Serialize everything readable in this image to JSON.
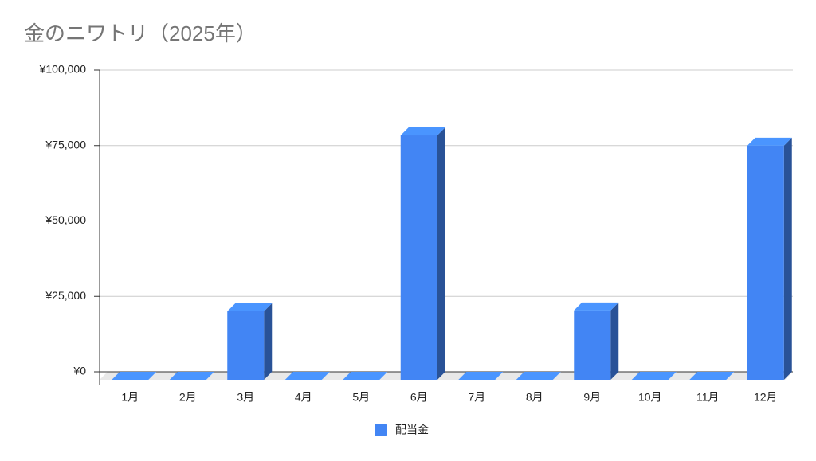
{
  "chart_data": {
    "type": "bar3d",
    "title": "金のニワトリ（2025年）",
    "categories": [
      "1月",
      "2月",
      "3月",
      "4月",
      "5月",
      "6月",
      "7月",
      "8月",
      "9月",
      "10月",
      "11月",
      "12月"
    ],
    "series": [
      {
        "name": "配当金",
        "color": "#4285f4",
        "values": [
          0,
          0,
          22700,
          0,
          0,
          81000,
          0,
          0,
          23000,
          0,
          0,
          77600
        ]
      }
    ],
    "ylim": [
      0,
      100000
    ],
    "yticks": [
      {
        "value": 0,
        "label": "¥0"
      },
      {
        "value": 25000,
        "label": "¥25,000"
      },
      {
        "value": 50000,
        "label": "¥50,000"
      },
      {
        "value": 75000,
        "label": "¥75,000"
      },
      {
        "value": 100000,
        "label": "¥100,000"
      }
    ],
    "grid": true,
    "legend": "bottom"
  }
}
